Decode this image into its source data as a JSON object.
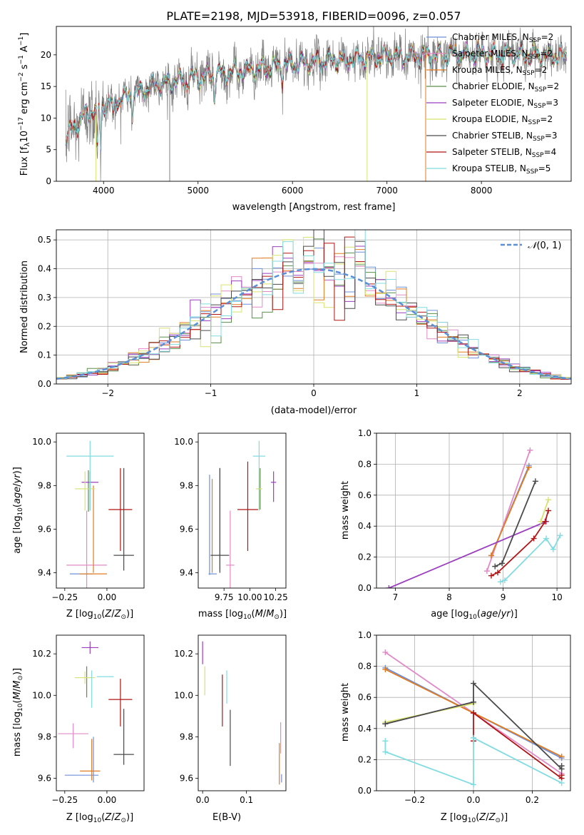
{
  "figure_title": "PLATE=2198, MJD=53918, FIBERID=0096, z=0.057",
  "colors": {
    "Chabrier MILES": "#6f8fd8",
    "Salpeter MILES": "#e28ac8",
    "Kroupa MILES": "#e07b20",
    "Chabrier ELODIE": "#5a8f4a",
    "Salpeter ELODIE": "#9b3fbf",
    "Kroupa ELODIE": "#d7e36e",
    "Chabrier STELIB": "#4a4a4a",
    "Salpeter STELIB": "#b01515",
    "Kroupa STELIB": "#80dce0",
    "data": "#808080",
    "normal": "#5b8fd8"
  },
  "chart_data": [
    {
      "id": "spectrum",
      "type": "line",
      "xlabel": "wavelength [Angstrom, rest frame]",
      "ylabel": "Flux [f_λ 10^-17 erg cm^-2 s^-1 A^-1]",
      "xlim": [
        3500,
        8950
      ],
      "ylim": [
        0,
        24.5
      ],
      "xticks": [
        4000,
        5000,
        6000,
        7000,
        8000
      ],
      "yticks": [
        0,
        5,
        10,
        15,
        20
      ],
      "grid": false,
      "legend_position": "upper-right",
      "legend": [
        {
          "label": "Chabrier MILES, N",
          "sub": "SSP",
          "suffix": "=2"
        },
        {
          "label": "Salpeter MILES, N",
          "sub": "SSP",
          "suffix": "=2"
        },
        {
          "label": "Kroupa MILES, N",
          "sub": "SSP",
          "suffix": "=2"
        },
        {
          "label": "Chabrier ELODIE, N",
          "sub": "SSP",
          "suffix": "=2"
        },
        {
          "label": "Salpeter ELODIE, N",
          "sub": "SSP",
          "suffix": "=3"
        },
        {
          "label": "Kroupa ELODIE, N",
          "sub": "SSP",
          "suffix": "=2"
        },
        {
          "label": "Chabrier STELIB, N",
          "sub": "SSP",
          "suffix": "=3"
        },
        {
          "label": "Salpeter STELIB, N",
          "sub": "SSP",
          "suffix": "=4"
        },
        {
          "label": "Kroupa STELIB, N",
          "sub": "SSP",
          "suffix": "=5"
        }
      ],
      "data_range": [
        3600,
        8900
      ],
      "continuum": [
        [
          3600,
          7
        ],
        [
          3800,
          10.5
        ],
        [
          4000,
          12
        ],
        [
          4200,
          13
        ],
        [
          4500,
          15
        ],
        [
          4800,
          16
        ],
        [
          5000,
          16.5
        ],
        [
          5500,
          17.5
        ],
        [
          6000,
          18.5
        ],
        [
          6500,
          19.3
        ],
        [
          7000,
          19.7
        ],
        [
          7500,
          20
        ],
        [
          8000,
          20.1
        ],
        [
          8500,
          20
        ],
        [
          8900,
          19.8
        ]
      ],
      "absorption_features": [
        [
          3934,
          7.5
        ],
        [
          3969,
          6.5
        ],
        [
          4102,
          3
        ],
        [
          4305,
          3
        ],
        [
          4861,
          2.5
        ],
        [
          5175,
          3.5
        ],
        [
          5893,
          2
        ],
        [
          6563,
          1.5
        ],
        [
          7600,
          2
        ]
      ],
      "spikes": [
        {
          "x": 3920,
          "y_min": 0,
          "y_max": 10.5,
          "series": "Kroupa ELODIE"
        },
        {
          "x": 4700,
          "y_min": 0,
          "y_max": 17,
          "series": "data"
        },
        {
          "x": 6790,
          "y_min": 0,
          "y_max": 20,
          "series": "Kroupa ELODIE"
        },
        {
          "x": 7410,
          "y_min": 0,
          "y_max": 19.5,
          "series": "Kroupa MILES"
        }
      ]
    },
    {
      "id": "residuals",
      "type": "histogram",
      "xlabel": "(data-model)/error",
      "ylabel": "Normed distribution",
      "xlim": [
        -2.5,
        2.5
      ],
      "ylim": [
        0,
        0.535
      ],
      "xticks": [
        -2,
        -1,
        0,
        1,
        2
      ],
      "yticks": [
        0.0,
        0.1,
        0.2,
        0.3,
        0.4,
        0.5
      ],
      "grid": true,
      "bin_width": 0.1,
      "legend_position": "upper-right",
      "reference_curve": {
        "label": "N(0, 1)",
        "mean": 0,
        "sigma": 1,
        "style": "dashed"
      },
      "series": [
        {
          "name": "Chabrier MILES"
        },
        {
          "name": "Salpeter MILES"
        },
        {
          "name": "Kroupa MILES"
        },
        {
          "name": "Chabrier ELODIE"
        },
        {
          "name": "Salpeter ELODIE"
        },
        {
          "name": "Kroupa ELODIE"
        },
        {
          "name": "Chabrier STELIB"
        },
        {
          "name": "Salpeter STELIB"
        },
        {
          "name": "Kroupa STELIB"
        }
      ]
    },
    {
      "id": "age_vs_Z",
      "type": "errorbar",
      "xlabel": "Z [log10(Z/Z⊙)]",
      "ylabel": "age [log10(age/yr)]",
      "xlim": [
        -0.3,
        0.22
      ],
      "ylim": [
        9.33,
        10.04
      ],
      "xticks": [
        -0.25,
        0.0
      ],
      "yticks": [
        9.4,
        9.6,
        9.8,
        10.0
      ],
      "grid": false,
      "points": [
        {
          "series": "Chabrier MILES",
          "x": -0.15,
          "xerr": 0.07,
          "y": 9.395,
          "yerr_low": 0.0,
          "yerr_high": 0.0
        },
        {
          "series": "Salpeter MILES",
          "x": -0.12,
          "xerr": 0.12,
          "y": 9.435,
          "yerr_low": 0.12,
          "yerr_high": 0.25
        },
        {
          "series": "Kroupa MILES",
          "x": -0.08,
          "xerr": 0.08,
          "y": 9.395,
          "yerr_low": 0.0,
          "yerr_high": 0.0
        },
        {
          "series": "Kroupa MILES",
          "x": -0.08,
          "xerr": 0.0,
          "y": 9.6,
          "yerr_low": 0.2,
          "yerr_high": 0.2
        },
        {
          "series": "Chabrier ELODIE",
          "x": -0.11,
          "xerr": 0.0,
          "y": 9.78,
          "yerr_low": 0.1,
          "yerr_high": 0.09
        },
        {
          "series": "Salpeter ELODIE",
          "x": -0.1,
          "xerr": 0.05,
          "y": 9.815,
          "yerr_low": 0.13,
          "yerr_high": 0.05
        },
        {
          "series": "Kroupa ELODIE",
          "x": -0.13,
          "xerr": 0.06,
          "y": 9.785,
          "yerr_low": 0.1,
          "yerr_high": 0.08
        },
        {
          "series": "Chabrier STELIB",
          "x": 0.1,
          "xerr": 0.06,
          "y": 9.48,
          "yerr_low": 0.07,
          "yerr_high": 0.4
        },
        {
          "series": "Salpeter STELIB",
          "x": 0.08,
          "xerr": 0.07,
          "y": 9.69,
          "yerr_low": 0.19,
          "yerr_high": 0.19
        },
        {
          "series": "Kroupa STELIB",
          "x": -0.1,
          "xerr": 0.14,
          "y": 9.935,
          "yerr_low": 0.25,
          "yerr_high": 0.07
        }
      ]
    },
    {
      "id": "age_vs_mass",
      "type": "errorbar",
      "xlabel": "mass [log10(M/M⊙)]",
      "ylabel": "",
      "xlim": [
        9.5,
        10.35
      ],
      "ylim": [
        9.33,
        10.04
      ],
      "xticks": [
        9.75,
        10.0,
        10.25
      ],
      "yticks": [
        9.4,
        9.6,
        9.8,
        10.0
      ],
      "grid": false,
      "points": [
        {
          "series": "Chabrier MILES",
          "x": 9.61,
          "xerr": 0.0,
          "y": 9.62,
          "yerr_low": 0.23,
          "yerr_high": 0.23
        },
        {
          "series": "Salpeter MILES",
          "x": 9.81,
          "xerr": 0.04,
          "y": 9.435,
          "yerr_low": 0.12,
          "yerr_high": 0.25
        },
        {
          "series": "Kroupa MILES",
          "x": 9.635,
          "xerr": 0.0,
          "y": 9.6,
          "yerr_low": 0.2,
          "yerr_high": 0.23
        },
        {
          "series": "Chabrier MILES",
          "x": 9.64,
          "xerr": 0.04,
          "y": 9.395,
          "yerr_low": 0.0,
          "yerr_high": 0.0
        },
        {
          "series": "Chabrier ELODIE",
          "x": 10.1,
          "xerr": 0.0,
          "y": 9.79,
          "yerr_low": 0.1,
          "yerr_high": 0.09
        },
        {
          "series": "Salpeter ELODIE",
          "x": 10.23,
          "xerr": 0.025,
          "y": 9.815,
          "yerr_low": 0.09,
          "yerr_high": 0.05
        },
        {
          "series": "Kroupa ELODIE",
          "x": 10.09,
          "xerr": 0.03,
          "y": 9.785,
          "yerr_low": 0.1,
          "yerr_high": 0.08
        },
        {
          "series": "Chabrier STELIB",
          "x": 9.71,
          "xerr": 0.09,
          "y": 9.48,
          "yerr_low": 0.07,
          "yerr_high": 0.4
        },
        {
          "series": "Salpeter STELIB",
          "x": 9.98,
          "xerr": 0.1,
          "y": 9.69,
          "yerr_low": 0.19,
          "yerr_high": 0.22
        },
        {
          "series": "Kroupa STELIB",
          "x": 10.09,
          "xerr": 0.06,
          "y": 9.935,
          "yerr_low": 0.25,
          "yerr_high": 0.07
        },
        {
          "series": "Chabrier STELIB",
          "x": 9.71,
          "xerr": 0.0,
          "y": 9.68,
          "yerr_low": 0.28,
          "yerr_high": 0.2
        }
      ]
    },
    {
      "id": "massweight_vs_age",
      "type": "line",
      "xlabel": "age [log10(age/yr)]",
      "ylabel": "mass weight",
      "xlim": [
        6.65,
        10.25
      ],
      "ylim": [
        0,
        1.0
      ],
      "xticks": [
        7,
        8,
        9,
        10
      ],
      "yticks": [
        0.0,
        0.2,
        0.4,
        0.6,
        0.8,
        1.0
      ],
      "grid": true,
      "series": [
        {
          "name": "Chabrier MILES",
          "x": [
            8.78,
            9.48
          ],
          "y": [
            0.21,
            0.79
          ]
        },
        {
          "name": "Salpeter MILES",
          "x": [
            8.7,
            9.5
          ],
          "y": [
            0.11,
            0.89
          ]
        },
        {
          "name": "Kroupa MILES",
          "x": [
            8.78,
            9.48
          ],
          "y": [
            0.21,
            0.78
          ]
        },
        {
          "name": "Salpeter ELODIE",
          "x": [
            6.88,
            9.8
          ],
          "y": [
            0.0,
            0.43
          ]
        },
        {
          "name": "Kroupa ELODIE",
          "x": [
            9.7,
            9.84
          ],
          "y": [
            0.43,
            0.57
          ]
        },
        {
          "name": "Chabrier STELIB",
          "x": [
            8.85,
            8.98,
            9.6
          ],
          "y": [
            0.14,
            0.16,
            0.69
          ]
        },
        {
          "name": "Salpeter STELIB",
          "x": [
            8.78,
            8.9,
            9.57,
            9.78,
            9.84
          ],
          "y": [
            0.08,
            0.1,
            0.32,
            0.43,
            0.5
          ]
        },
        {
          "name": "Kroupa STELIB",
          "x": [
            8.95,
            9.03,
            9.8,
            9.93,
            10.06
          ],
          "y": [
            0.04,
            0.05,
            0.32,
            0.25,
            0.34
          ]
        }
      ]
    },
    {
      "id": "mass_vs_Z",
      "type": "errorbar",
      "xlabel": "Z [log10(Z/Z⊙)]",
      "ylabel": "mass [log10(M/M⊙)]",
      "xlim": [
        -0.3,
        0.22
      ],
      "ylim": [
        9.54,
        10.29
      ],
      "xticks": [
        -0.25,
        0.0
      ],
      "yticks": [
        9.6,
        9.8,
        10.0,
        10.2
      ],
      "grid": false,
      "points": [
        {
          "series": "Chabrier MILES",
          "x": -0.15,
          "xerr": 0.1,
          "y": 9.615,
          "yerr_low": 0.0,
          "yerr_high": 0.0
        },
        {
          "series": "Chabrier MILES",
          "x": -0.08,
          "xerr": 0.0,
          "y": 9.7,
          "yerr_low": 0.12,
          "yerr_high": 0.1
        },
        {
          "series": "Salpeter MILES",
          "x": -0.2,
          "xerr": 0.09,
          "y": 9.815,
          "yerr_low": 0.07,
          "yerr_high": 0.05
        },
        {
          "series": "Kroupa MILES",
          "x": -0.1,
          "xerr": 0.06,
          "y": 9.635,
          "yerr_low": 0.0,
          "yerr_high": 0.0
        },
        {
          "series": "Kroupa MILES",
          "x": -0.09,
          "xerr": 0.0,
          "y": 9.71,
          "yerr_low": 0.12,
          "yerr_high": 0.08
        },
        {
          "series": "Chabrier ELODIE",
          "x": -0.12,
          "xerr": 0.0,
          "y": 10.09,
          "yerr_low": 0.1,
          "yerr_high": 0.05
        },
        {
          "series": "Salpeter ELODIE",
          "x": -0.1,
          "xerr": 0.05,
          "y": 10.23,
          "yerr_low": 0.03,
          "yerr_high": 0.03
        },
        {
          "series": "Kroupa ELODIE",
          "x": -0.13,
          "xerr": 0.06,
          "y": 10.085,
          "yerr_low": 0.03,
          "yerr_high": 0.03
        },
        {
          "series": "Chabrier STELIB",
          "x": 0.1,
          "xerr": 0.06,
          "y": 9.715,
          "yerr_low": 0.05,
          "yerr_high": 0.22
        },
        {
          "series": "Salpeter STELIB",
          "x": 0.08,
          "xerr": 0.07,
          "y": 9.98,
          "yerr_low": 0.13,
          "yerr_high": 0.1
        },
        {
          "series": "Kroupa STELIB",
          "x": -0.09,
          "xerr": 0.0,
          "y": 10.0,
          "yerr_low": 0.06,
          "yerr_high": 0.12
        },
        {
          "series": "Kroupa STELIB",
          "x": -0.01,
          "xerr": 0.05,
          "y": 10.09,
          "yerr_low": 0.0,
          "yerr_high": 0.0
        }
      ]
    },
    {
      "id": "mass_vs_EBV",
      "type": "errorbar",
      "xlabel": "E(B-V)",
      "ylabel": "",
      "xlim": [
        -0.01,
        0.19
      ],
      "ylim": [
        9.54,
        10.29
      ],
      "xticks": [
        0.0,
        0.1
      ],
      "yticks": [
        9.6,
        9.8,
        10.0,
        10.2
      ],
      "grid": false,
      "points": [
        {
          "series": "Salpeter ELODIE",
          "x": 0.0,
          "xerr": 0.0,
          "y": 10.2,
          "yerr_low": 0.05,
          "yerr_high": 0.06
        },
        {
          "series": "Kroupa ELODIE",
          "x": 0.005,
          "xerr": 0.0,
          "y": 10.07,
          "yerr_low": 0.07,
          "yerr_high": 0.07
        },
        {
          "series": "Salpeter STELIB",
          "x": 0.045,
          "xerr": 0.0,
          "y": 9.98,
          "yerr_low": 0.13,
          "yerr_high": 0.12
        },
        {
          "series": "Kroupa STELIB",
          "x": 0.055,
          "xerr": 0.0,
          "y": 10.06,
          "yerr_low": 0.1,
          "yerr_high": 0.06
        },
        {
          "series": "Chabrier STELIB",
          "x": 0.063,
          "xerr": 0.0,
          "y": 9.79,
          "yerr_low": 0.13,
          "yerr_high": 0.14
        },
        {
          "series": "Kroupa MILES",
          "x": 0.175,
          "xerr": 0.0,
          "y": 9.67,
          "yerr_low": 0.1,
          "yerr_high": 0.1
        },
        {
          "series": "Salpeter MILES",
          "x": 0.178,
          "xerr": 0.0,
          "y": 9.8,
          "yerr_low": 0.08,
          "yerr_high": 0.07
        },
        {
          "series": "Chabrier MILES",
          "x": 0.18,
          "xerr": 0.0,
          "y": 9.6,
          "yerr_low": 0.02,
          "yerr_high": 0.02
        }
      ]
    },
    {
      "id": "massweight_vs_Z",
      "type": "line",
      "xlabel": "Z [log10(Z/Z⊙)]",
      "ylabel": "mass weight",
      "xlim": [
        -0.33,
        0.33
      ],
      "ylim": [
        0,
        1.0
      ],
      "xticks": [
        -0.2,
        0.0,
        0.2
      ],
      "yticks": [
        0.0,
        0.2,
        0.4,
        0.6,
        0.8,
        1.0
      ],
      "grid": true,
      "series": [
        {
          "name": "Chabrier MILES",
          "x": [
            -0.3,
            0.3
          ],
          "y": [
            0.79,
            0.21
          ]
        },
        {
          "name": "Salpeter MILES",
          "x": [
            -0.3,
            0.3
          ],
          "y": [
            0.89,
            0.11
          ]
        },
        {
          "name": "Kroupa MILES",
          "x": [
            -0.3,
            0.3
          ],
          "y": [
            0.78,
            0.22
          ]
        },
        {
          "name": "Chabrier ELODIE",
          "x": [
            -0.3,
            0.0
          ],
          "y": [
            0.43,
            0.57
          ]
        },
        {
          "name": "Salpeter ELODIE",
          "x": [
            -0.3,
            0.0
          ],
          "y": [
            0.43,
            0.57
          ]
        },
        {
          "name": "Kroupa ELODIE",
          "x": [
            -0.3,
            0.0
          ],
          "y": [
            0.44,
            0.56
          ]
        },
        {
          "name": "Chabrier STELIB",
          "x": [
            -0.3,
            0.0,
            0.0,
            0.3,
            0.3
          ],
          "y": [
            0.43,
            0.57,
            0.69,
            0.14,
            0.16
          ]
        },
        {
          "name": "Salpeter STELIB",
          "x": [
            0.0,
            0.0,
            0.0,
            0.3,
            0.3
          ],
          "y": [
            0.32,
            0.5,
            0.5,
            0.08,
            0.1
          ]
        },
        {
          "name": "Kroupa STELIB",
          "x": [
            -0.3,
            -0.3,
            0.0,
            0.0,
            0.3
          ],
          "y": [
            0.32,
            0.25,
            0.04,
            0.34,
            0.05
          ]
        }
      ]
    }
  ]
}
